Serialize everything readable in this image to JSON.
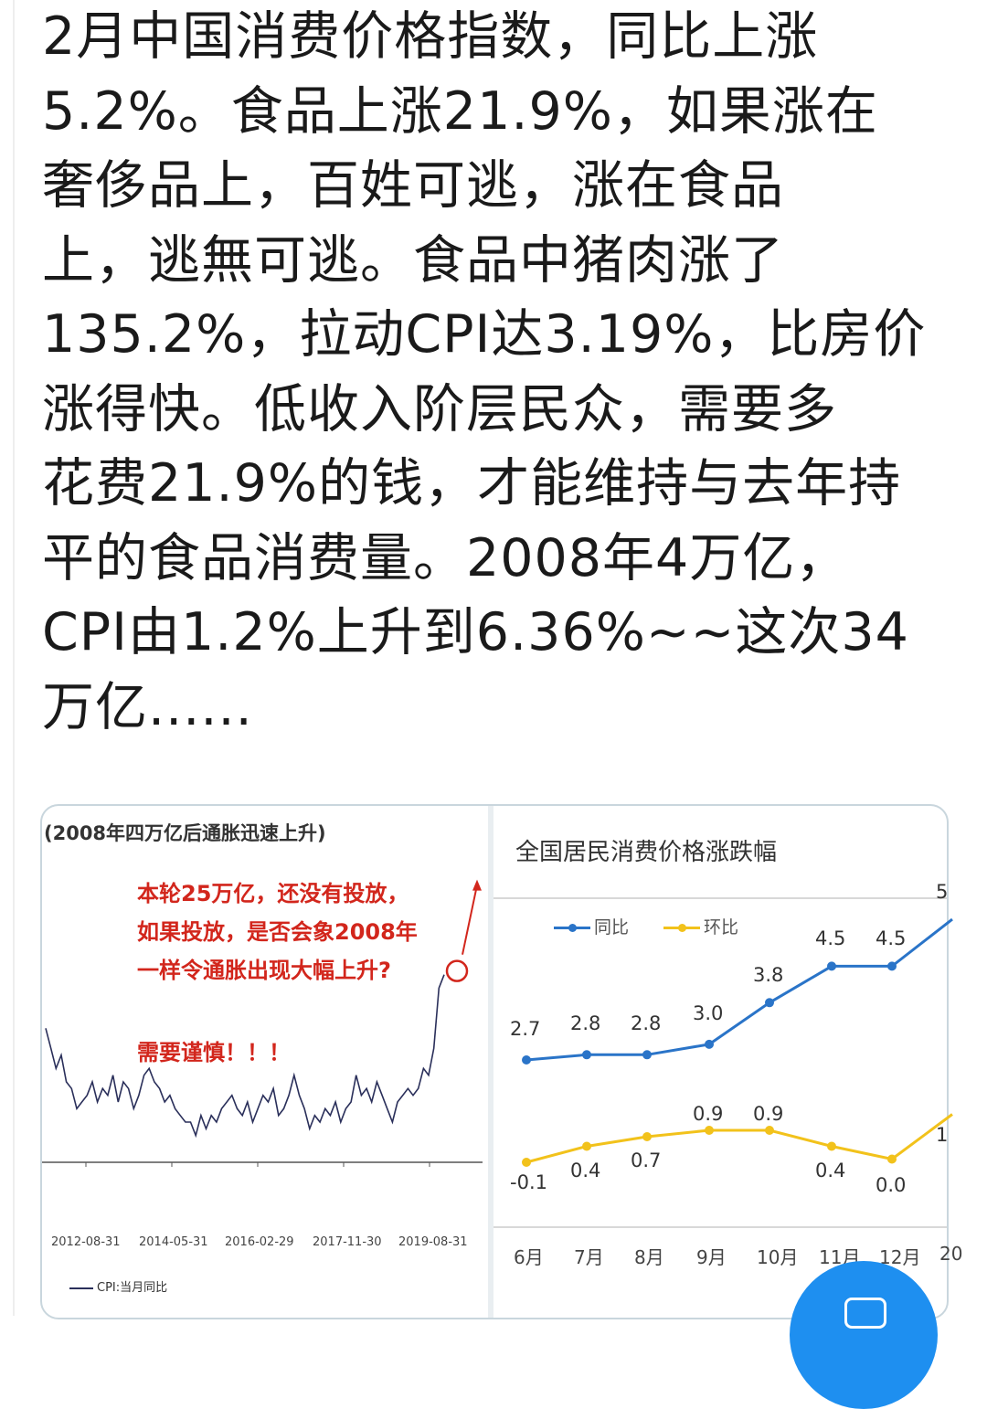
{
  "post": {
    "lines": [
      "2月中国消费价格指数，同比上涨",
      "5.2%。食品上涨21.9%，如果涨在",
      "奢侈品上，百姓可逃，涨在食品",
      "上，逃無可逃。食品中猪肉涨了",
      "135.2%，拉动CPI达3.19%，比房价",
      "涨得快。低收入阶层民众，需要多",
      "花费21.9%的钱，才能维持与去年持",
      "平的食品消费量。2008年4万亿，",
      "CPI由1.2%上升到6.36%~~这次34",
      "万亿......"
    ]
  },
  "chart_data": [
    {
      "type": "line",
      "title": "(2008年四万亿后通胀迅速上升)",
      "annotations": [
        "本轮25万亿，还没有投放，",
        "如果投放，是否会象2008年",
        "一样令通胀出现大幅上升?",
        "需要谨慎！！！"
      ],
      "x_ticks": [
        "2012-08-31",
        "2014-05-31",
        "2016-02-29",
        "2017-11-30",
        "2019-08-31"
      ],
      "series": [
        {
          "name": "CPI:当月同比",
          "color": "#2a2f5a",
          "values": [
            2.0,
            1.7,
            1.4,
            1.6,
            1.2,
            1.1,
            0.8,
            0.9,
            1.0,
            1.2,
            0.9,
            1.1,
            1.0,
            1.3,
            0.9,
            1.2,
            1.1,
            0.8,
            1.0,
            1.3,
            1.4,
            1.2,
            1.1,
            0.9,
            1.0,
            0.8,
            0.7,
            0.6,
            0.6,
            0.4,
            0.7,
            0.5,
            0.7,
            0.6,
            0.8,
            0.9,
            1.0,
            0.8,
            0.7,
            0.9,
            0.6,
            0.8,
            1.0,
            0.9,
            1.1,
            0.7,
            0.8,
            1.0,
            1.3,
            1.0,
            0.8,
            0.5,
            0.7,
            0.6,
            0.8,
            0.7,
            0.9,
            0.6,
            0.8,
            0.9,
            1.3,
            1.0,
            1.1,
            0.9,
            1.2,
            1.0,
            0.8,
            0.6,
            0.9,
            1.0,
            1.1,
            1.0,
            1.1,
            1.4,
            1.3,
            1.7,
            2.6,
            2.8
          ]
        }
      ],
      "marker": "red circle on latest value"
    },
    {
      "type": "line",
      "title": "全国居民消费价格涨跌幅",
      "categories": [
        "6月",
        "7月",
        "8月",
        "9月",
        "10月",
        "11月",
        "12月",
        "20"
      ],
      "series": [
        {
          "name": "同比",
          "color": "#2a74c8",
          "values": [
            2.7,
            2.8,
            2.8,
            3.0,
            3.8,
            4.5,
            4.5,
            5.4
          ]
        },
        {
          "name": "环比",
          "color": "#f2c21b",
          "values": [
            -0.1,
            0.4,
            0.7,
            0.9,
            0.9,
            0.4,
            0.0,
            1.4
          ]
        }
      ],
      "value_labels": {
        "同比": [
          "2.7",
          "2.8",
          "2.8",
          "3.0",
          "3.8",
          "4.5",
          "4.5",
          "5"
        ],
        "环比": [
          "-0.1",
          "0.4",
          "0.7",
          "0.9",
          "0.9",
          "0.4",
          "0.0",
          "1"
        ]
      }
    }
  ],
  "fab": {
    "icon": "comment-icon",
    "color": "#1e8ff0"
  }
}
